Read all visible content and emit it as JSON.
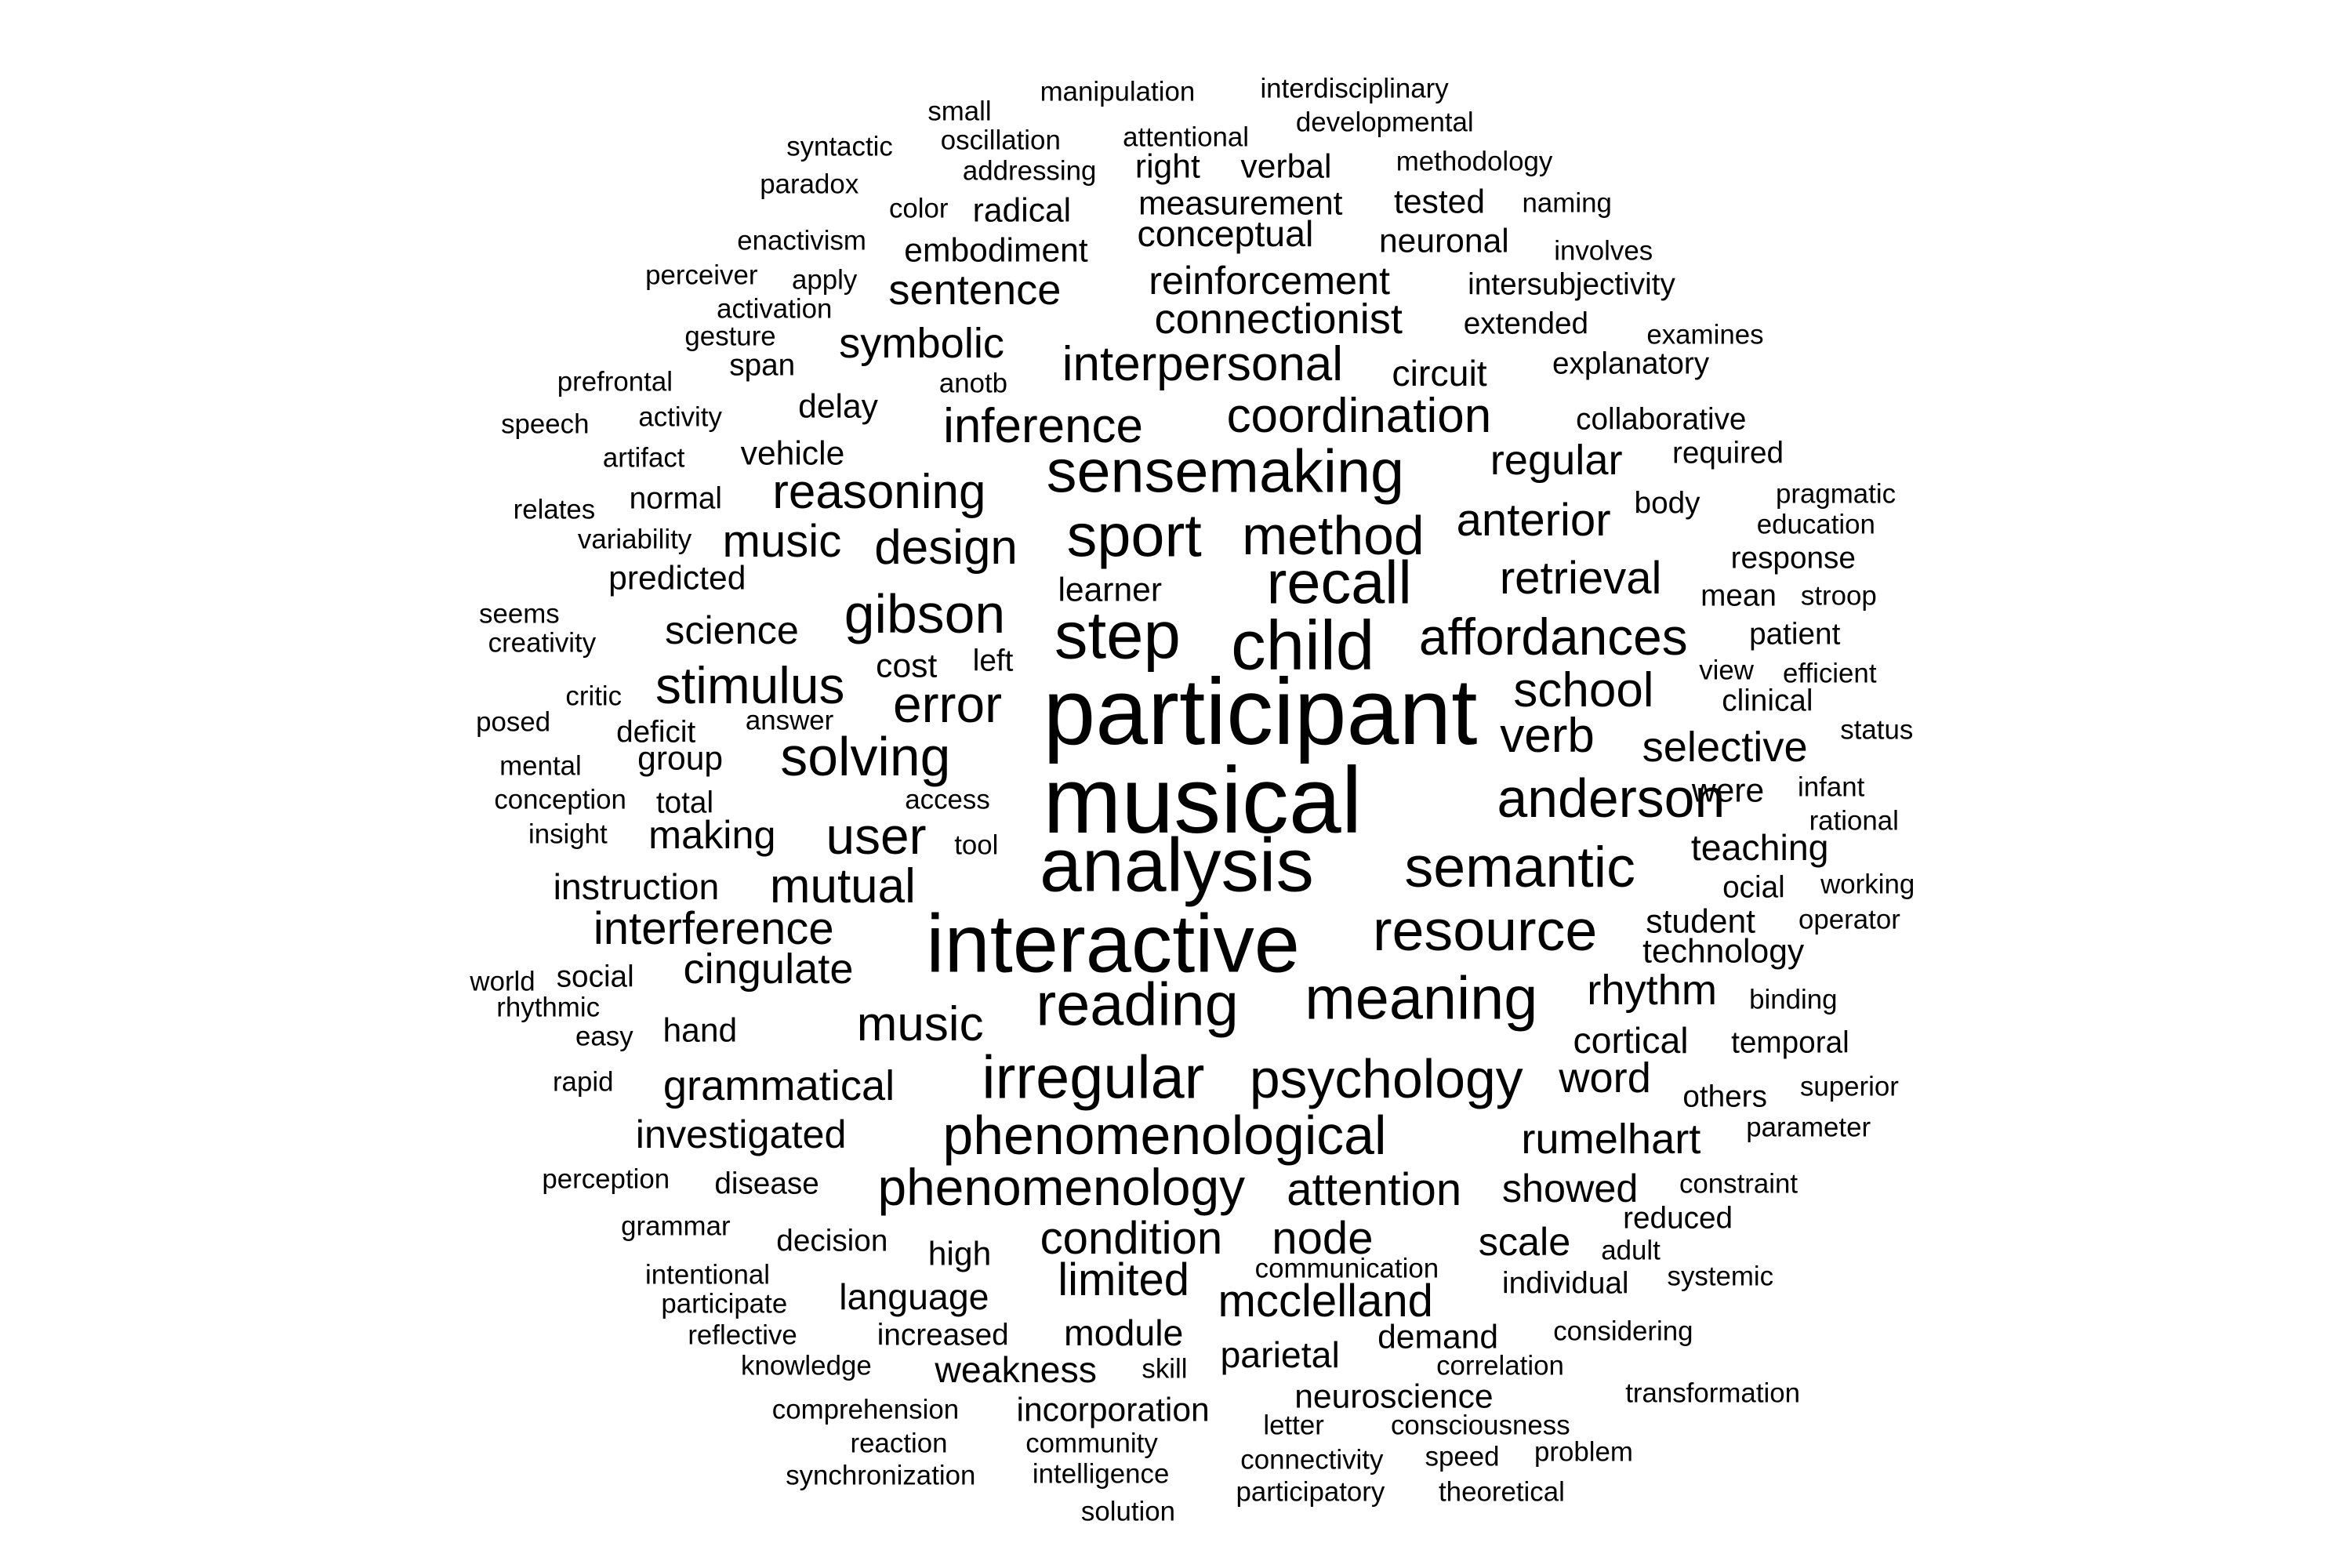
{
  "words": [
    "musical",
    "participant",
    "analysis",
    "interactive",
    "step",
    "child",
    "recall",
    "sport",
    "sensemaking",
    "reading",
    "meaning",
    "irregular",
    "psychology",
    "phenomenological",
    "resource",
    "semantic",
    "anderson",
    "affordances",
    "method",
    "gibson",
    "solving",
    "stimulus",
    "error",
    "user",
    "mutual",
    "interference",
    "cingulate",
    "music",
    "music",
    "phenomenology",
    "attention",
    "condition",
    "node",
    "limited",
    "mcclelland",
    "verb",
    "school",
    "retrieval",
    "anterior",
    "regular",
    "coordination",
    "interpersonal",
    "inference",
    "reasoning",
    "design",
    "selective",
    "rhythm",
    "word",
    "rumelhart",
    "grammatical",
    "investigated",
    "showed",
    "scale",
    "connectionist",
    "reinforcement",
    "sentence",
    "symbolic",
    "science",
    "making",
    "instruction",
    "module",
    "language",
    "weakness",
    "incorporation",
    "parietal",
    "neuroscience",
    "demand",
    "cortical",
    "teaching",
    "student",
    "technology",
    "conceptual",
    "embodiment",
    "measurement",
    "tested",
    "neuronal",
    "intersubjectivity",
    "extended",
    "explanatory",
    "collaborative",
    "required",
    "circuit",
    "delay",
    "vehicle",
    "learner",
    "cost",
    "left",
    "group",
    "deficit",
    "total",
    "were",
    "individual",
    "decision",
    "high",
    "increased",
    "disease",
    "hand",
    "social",
    "reduced",
    "others",
    "temporal",
    "body",
    "mean",
    "patient",
    "response",
    "clinical",
    "view",
    "efficient",
    "radical",
    "right",
    "verbal",
    "manipulation",
    "interdisciplinary",
    "developmental",
    "methodology",
    "attentional",
    "oscillation",
    "addressing",
    "small",
    "syntactic",
    "paradox",
    "color",
    "naming",
    "enactivism",
    "involves",
    "perceiver",
    "apply",
    "activation",
    "gesture",
    "span",
    "examines",
    "prefrontal",
    "anotb",
    "speech",
    "activity",
    "artifact",
    "normal",
    "relates",
    "variability",
    "pragmatic",
    "education",
    "predicted",
    "stroop",
    "seems",
    "creativity",
    "critic",
    "posed",
    "answer",
    "mental",
    "conception",
    "access",
    "insight",
    "tool",
    "infant",
    "rational",
    "ocial",
    "working",
    "operator",
    "world",
    "rhythmic",
    "easy",
    "binding",
    "rapid",
    "superior",
    "parameter",
    "perception",
    "constraint",
    "grammar",
    "adult",
    "communication",
    "systemic",
    "intentional",
    "participate",
    "reflective",
    "knowledge",
    "skill",
    "considering",
    "correlation",
    "comprehension",
    "reaction",
    "community",
    "letter",
    "consciousness",
    "transformation",
    "synchronization",
    "intelligence",
    "connectivity",
    "speed",
    "problem",
    "participatory",
    "theoretical",
    "solution",
    "status"
  ]
}
